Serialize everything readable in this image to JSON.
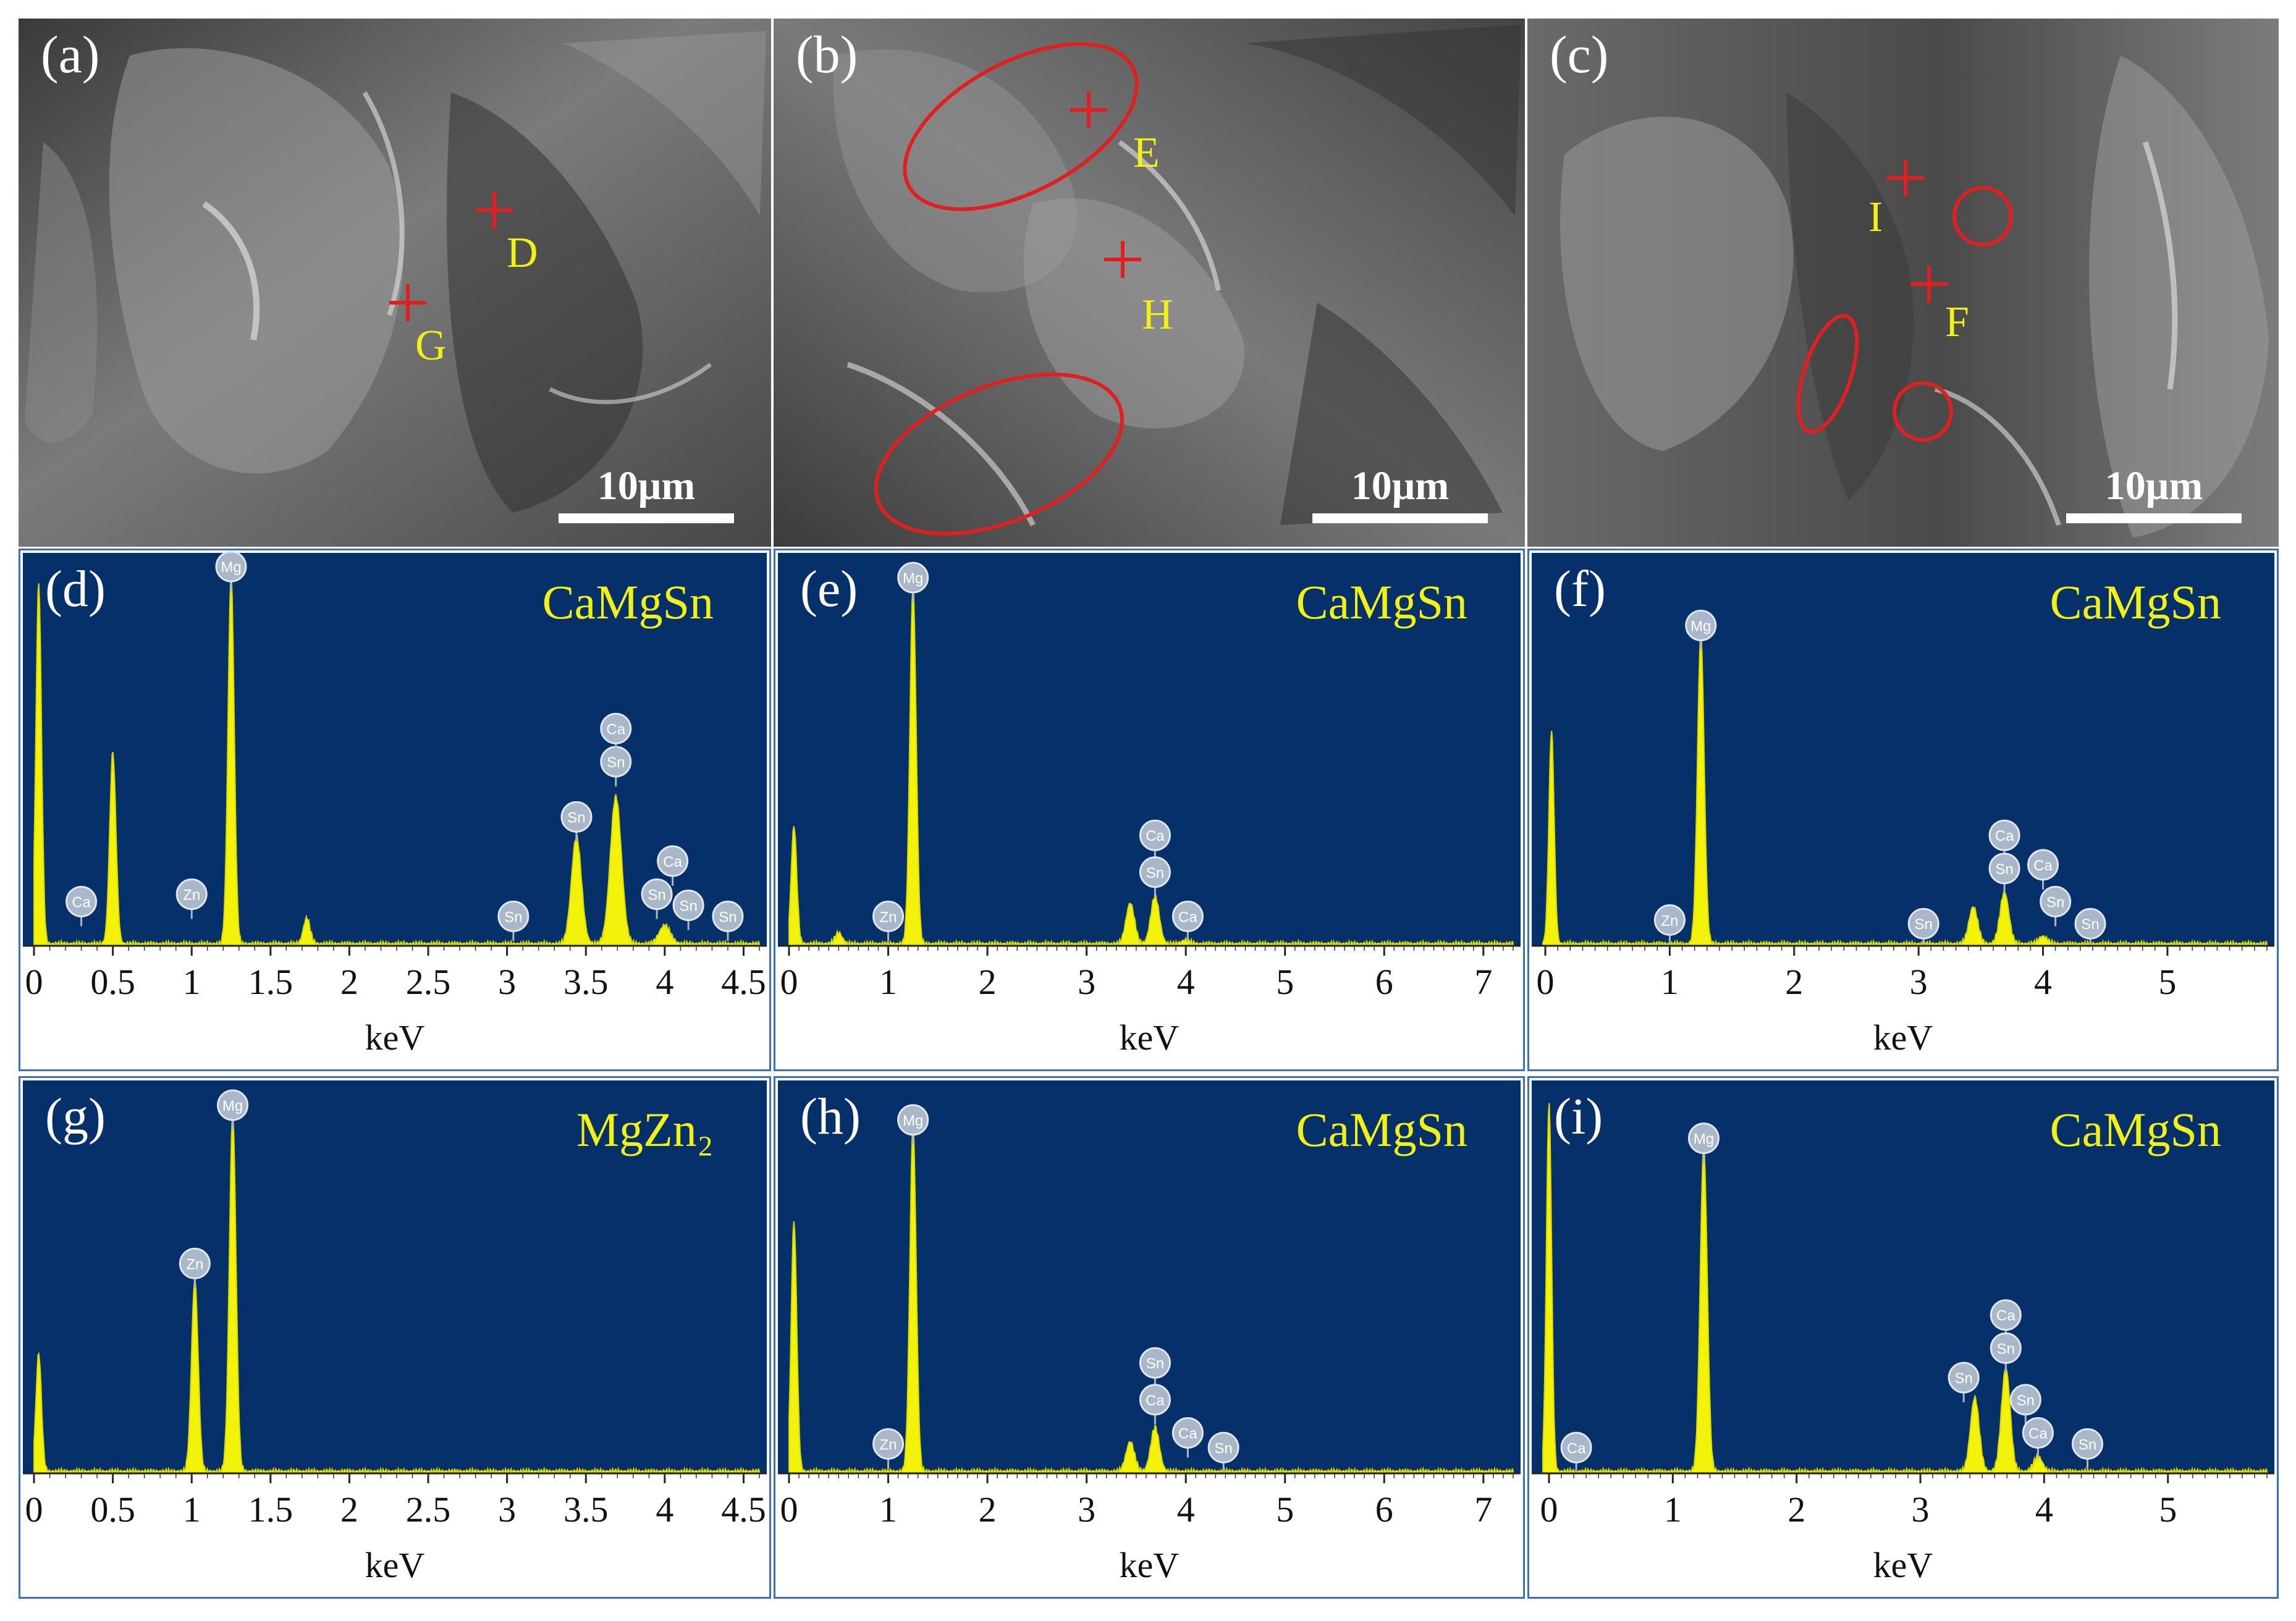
{
  "figure": {
    "sem_panels": [
      {
        "letter": "(a)",
        "labels": [
          "D",
          "G"
        ],
        "scale": "10μm"
      },
      {
        "letter": "(b)",
        "labels": [
          "E",
          "H"
        ],
        "scale": "10μm"
      },
      {
        "letter": "(c)",
        "labels": [
          "I",
          "F"
        ],
        "scale": "10μm"
      }
    ],
    "colors": {
      "eds_background": "#05306a",
      "spectrum": "#f2f20a",
      "markers": "#e02020",
      "labels": "#f1f117",
      "frame": "#3d6fb5"
    }
  },
  "chart_data": [
    {
      "type": "area",
      "letter": "(d)",
      "phase": "CaMgSn",
      "xlabel": "keV",
      "xlim": [
        0,
        4.6
      ],
      "ticks": [
        "0",
        "0.5",
        "1",
        "1.5",
        "2",
        "2.5",
        "3",
        "3.5",
        "4",
        "4.5"
      ],
      "peaks": [
        {
          "x": 0.03,
          "h": 0.98,
          "w": 0.025
        },
        {
          "x": 0.5,
          "h": 0.52,
          "w": 0.028
        },
        {
          "x": 1.25,
          "h": 1.0,
          "w": 0.028
        },
        {
          "x": 1.73,
          "h": 0.07,
          "w": 0.03
        },
        {
          "x": 3.44,
          "h": 0.29,
          "w": 0.045
        },
        {
          "x": 3.69,
          "h": 0.4,
          "w": 0.05
        },
        {
          "x": 4.0,
          "h": 0.05,
          "w": 0.05
        }
      ],
      "markers": [
        {
          "el": "Mg",
          "x": 1.25,
          "y": 1.03
        },
        {
          "el": "Ca",
          "x": 0.3,
          "y": 0.12
        },
        {
          "el": "Zn",
          "x": 1.0,
          "y": 0.14
        },
        {
          "el": "Sn",
          "x": 3.04,
          "y": 0.08
        },
        {
          "el": "Sn",
          "x": 3.44,
          "y": 0.35
        },
        {
          "el": "Sn",
          "x": 3.69,
          "y": 0.5
        },
        {
          "el": "Ca",
          "x": 3.69,
          "y": 0.59
        },
        {
          "el": "Ca",
          "x": 4.05,
          "y": 0.23
        },
        {
          "el": "Sn",
          "x": 3.95,
          "y": 0.14
        },
        {
          "el": "Sn",
          "x": 4.15,
          "y": 0.11
        },
        {
          "el": "Sn",
          "x": 4.4,
          "y": 0.08
        }
      ]
    },
    {
      "type": "area",
      "letter": "(e)",
      "phase": "CaMgSn",
      "xlabel": "keV",
      "xlim": [
        0,
        7.3
      ],
      "ticks": [
        "0",
        "1",
        "2",
        "3",
        "4",
        "5",
        "6",
        "7"
      ],
      "peaks": [
        {
          "x": 0.05,
          "h": 0.32,
          "w": 0.04
        },
        {
          "x": 0.5,
          "h": 0.03,
          "w": 0.05
        },
        {
          "x": 1.25,
          "h": 0.97,
          "w": 0.045
        },
        {
          "x": 3.44,
          "h": 0.11,
          "w": 0.06
        },
        {
          "x": 3.69,
          "h": 0.13,
          "w": 0.06
        },
        {
          "x": 4.0,
          "h": 0.01,
          "w": 0.06
        }
      ],
      "markers": [
        {
          "el": "Mg",
          "x": 1.25,
          "y": 1.0
        },
        {
          "el": "Zn",
          "x": 1.0,
          "y": 0.08
        },
        {
          "el": "Ca",
          "x": 3.69,
          "y": 0.3
        },
        {
          "el": "Sn",
          "x": 3.69,
          "y": 0.2
        },
        {
          "el": "Ca",
          "x": 4.02,
          "y": 0.08
        }
      ]
    },
    {
      "type": "area",
      "letter": "(f)",
      "phase": "CaMgSn",
      "xlabel": "keV",
      "xlim": [
        -0.02,
        5.8
      ],
      "ticks": [
        "0",
        "1",
        "2",
        "3",
        "4",
        "5"
      ],
      "peaks": [
        {
          "x": 0.05,
          "h": 0.58,
          "w": 0.03
        },
        {
          "x": 1.25,
          "h": 0.84,
          "w": 0.038
        },
        {
          "x": 3.44,
          "h": 0.1,
          "w": 0.05
        },
        {
          "x": 3.69,
          "h": 0.14,
          "w": 0.05
        },
        {
          "x": 4.0,
          "h": 0.02,
          "w": 0.05
        }
      ],
      "markers": [
        {
          "el": "Mg",
          "x": 1.25,
          "y": 0.87
        },
        {
          "el": "Zn",
          "x": 1.0,
          "y": 0.07
        },
        {
          "el": "Sn",
          "x": 3.04,
          "y": 0.06
        },
        {
          "el": "Ca",
          "x": 3.69,
          "y": 0.3
        },
        {
          "el": "Sn",
          "x": 3.69,
          "y": 0.21
        },
        {
          "el": "Ca",
          "x": 4.0,
          "y": 0.22
        },
        {
          "el": "Sn",
          "x": 4.1,
          "y": 0.12
        },
        {
          "el": "Sn",
          "x": 4.38,
          "y": 0.06
        }
      ]
    },
    {
      "type": "area",
      "letter": "(g)",
      "phase": "MgZn₂",
      "xlabel": "keV",
      "xlim": [
        0,
        4.6
      ],
      "ticks": [
        "0",
        "0.5",
        "1",
        "1.5",
        "2",
        "2.5",
        "3",
        "3.5",
        "4",
        "4.5"
      ],
      "peaks": [
        {
          "x": 0.03,
          "h": 0.32,
          "w": 0.025
        },
        {
          "x": 1.02,
          "h": 0.52,
          "w": 0.03
        },
        {
          "x": 1.26,
          "h": 0.97,
          "w": 0.03
        }
      ],
      "markers": [
        {
          "el": "Mg",
          "x": 1.26,
          "y": 1.0
        },
        {
          "el": "Zn",
          "x": 1.02,
          "y": 0.57
        }
      ]
    },
    {
      "type": "area",
      "letter": "(h)",
      "phase": "CaMgSn",
      "xlabel": "keV",
      "xlim": [
        0,
        7.3
      ],
      "ticks": [
        "0",
        "1",
        "2",
        "3",
        "4",
        "5",
        "6",
        "7"
      ],
      "peaks": [
        {
          "x": 0.05,
          "h": 0.68,
          "w": 0.04
        },
        {
          "x": 1.25,
          "h": 0.94,
          "w": 0.045
        },
        {
          "x": 3.44,
          "h": 0.08,
          "w": 0.06
        },
        {
          "x": 3.69,
          "h": 0.12,
          "w": 0.06
        }
      ],
      "markers": [
        {
          "el": "Mg",
          "x": 1.25,
          "y": 0.96
        },
        {
          "el": "Zn",
          "x": 1.0,
          "y": 0.08
        },
        {
          "el": "Sn",
          "x": 3.69,
          "y": 0.3
        },
        {
          "el": "Ca",
          "x": 3.69,
          "y": 0.2
        },
        {
          "el": "Ca",
          "x": 4.02,
          "y": 0.11
        },
        {
          "el": "Sn",
          "x": 4.38,
          "y": 0.07
        }
      ]
    },
    {
      "type": "area",
      "letter": "(i)",
      "phase": "CaMgSn",
      "xlabel": "keV",
      "xlim": [
        -0.05,
        5.8
      ],
      "ticks": [
        "0",
        "1",
        "2",
        "3",
        "4",
        "5"
      ],
      "peaks": [
        {
          "x": 0.0,
          "h": 1.0,
          "w": 0.03
        },
        {
          "x": 1.25,
          "h": 0.88,
          "w": 0.04
        },
        {
          "x": 3.44,
          "h": 0.2,
          "w": 0.05
        },
        {
          "x": 3.69,
          "h": 0.28,
          "w": 0.05
        },
        {
          "x": 3.95,
          "h": 0.04,
          "w": 0.05
        }
      ],
      "markers": [
        {
          "el": "Mg",
          "x": 1.25,
          "y": 0.91
        },
        {
          "el": "Ca",
          "x": 0.22,
          "y": 0.07
        },
        {
          "el": "Ca",
          "x": 3.69,
          "y": 0.43
        },
        {
          "el": "Sn",
          "x": 3.69,
          "y": 0.34
        },
        {
          "el": "Sn",
          "x": 3.35,
          "y": 0.26
        },
        {
          "el": "Sn",
          "x": 3.85,
          "y": 0.2
        },
        {
          "el": "Ca",
          "x": 3.95,
          "y": 0.11
        },
        {
          "el": "Sn",
          "x": 4.35,
          "y": 0.08
        }
      ]
    }
  ]
}
